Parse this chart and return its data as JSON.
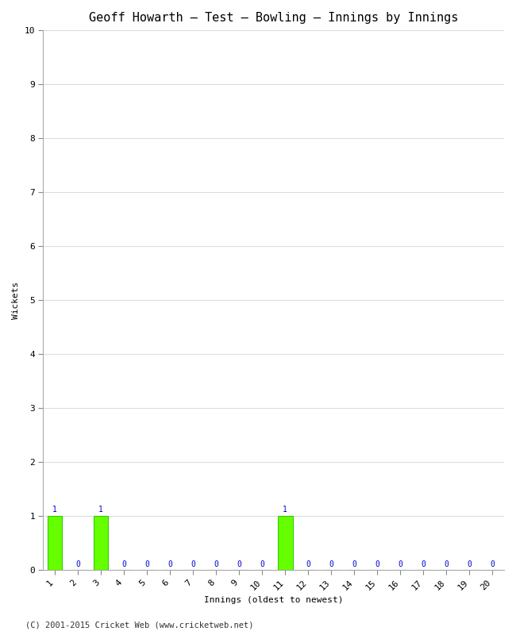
{
  "title": "Geoff Howarth – Test – Bowling – Innings by Innings",
  "xlabel": "Innings (oldest to newest)",
  "ylabel": "Wickets",
  "innings": [
    1,
    2,
    3,
    4,
    5,
    6,
    7,
    8,
    9,
    10,
    11,
    12,
    13,
    14,
    15,
    16,
    17,
    18,
    19,
    20
  ],
  "wickets": [
    1,
    0,
    1,
    0,
    0,
    0,
    0,
    0,
    0,
    0,
    1,
    0,
    0,
    0,
    0,
    0,
    0,
    0,
    0,
    0
  ],
  "bar_color": "#66ff00",
  "bar_edge_color": "#33cc00",
  "label_color": "#0000cc",
  "ylim": [
    0,
    10
  ],
  "yticks": [
    0,
    1,
    2,
    3,
    4,
    5,
    6,
    7,
    8,
    9,
    10
  ],
  "background_color": "#ffffff",
  "plot_bg_color": "#ffffff",
  "grid_color": "#dddddd",
  "footer": "(C) 2001-2015 Cricket Web (www.cricketweb.net)",
  "title_fontsize": 11,
  "axis_label_fontsize": 8,
  "tick_fontsize": 8,
  "label_fontsize": 7,
  "footer_fontsize": 7.5
}
